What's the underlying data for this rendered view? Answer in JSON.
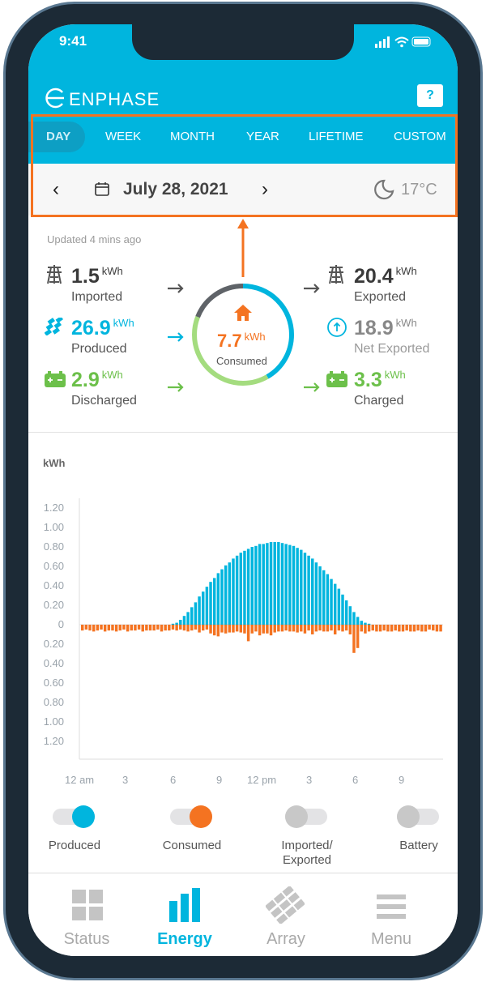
{
  "status_bar": {
    "time": "9:41"
  },
  "header": {
    "brand": "ENPHASE",
    "help_label": "?"
  },
  "tabs": [
    {
      "label": "DAY",
      "active": true
    },
    {
      "label": "WEEK"
    },
    {
      "label": "MONTH"
    },
    {
      "label": "YEAR"
    },
    {
      "label": "LIFETIME"
    },
    {
      "label": "CUSTOM"
    }
  ],
  "date_bar": {
    "date": "July 28, 2021",
    "weather_icon": "moon-icon",
    "temperature": "17°C"
  },
  "summary": {
    "updated": "Updated 4 mins ago",
    "imported": {
      "value": "1.5",
      "unit": "kWh",
      "label": "Imported"
    },
    "produced": {
      "value": "26.9",
      "unit": "kWh",
      "label": "Produced"
    },
    "discharged": {
      "value": "2.9",
      "unit": "kWh",
      "label": "Discharged"
    },
    "consumed": {
      "value": "7.7",
      "unit": "kWh",
      "label": "Consumed"
    },
    "exported": {
      "value": "20.4",
      "unit": "kWh",
      "label": "Exported"
    },
    "net_exported": {
      "value": "18.9",
      "unit": "kWh",
      "label": "Net Exported"
    },
    "charged": {
      "value": "3.3",
      "unit": "kWh",
      "label": "Charged"
    }
  },
  "colors": {
    "brand": "#00b5de",
    "produced": "#00b5de",
    "consumed": "#f47321",
    "battery": "#6cc04a",
    "grid": "#5f6368"
  },
  "chart_data": {
    "type": "bar",
    "ylabel": "kWh",
    "ylim": [
      -1.2,
      1.2
    ],
    "y_ticks": [
      "1.20",
      "1.00",
      "0.80",
      "0.60",
      "0.40",
      "0.20",
      "0",
      "0.20",
      "0.40",
      "0.60",
      "0.80",
      "1.00",
      "1.20"
    ],
    "x_ticks": [
      "12 am",
      "3",
      "6",
      "9",
      "12 pm",
      "3",
      "6",
      "9"
    ],
    "interval": "15 min",
    "series": [
      {
        "name": "Produced",
        "color": "#00b5de",
        "values": [
          0,
          0,
          0,
          0,
          0,
          0,
          0,
          0,
          0,
          0,
          0,
          0,
          0,
          0,
          0,
          0,
          0,
          0,
          0,
          0,
          0,
          0,
          0,
          0,
          0.01,
          0.02,
          0.05,
          0.09,
          0.13,
          0.18,
          0.23,
          0.29,
          0.34,
          0.39,
          0.44,
          0.48,
          0.53,
          0.57,
          0.61,
          0.64,
          0.68,
          0.71,
          0.74,
          0.76,
          0.78,
          0.8,
          0.81,
          0.83,
          0.83,
          0.84,
          0.85,
          0.85,
          0.85,
          0.84,
          0.83,
          0.82,
          0.81,
          0.79,
          0.77,
          0.74,
          0.71,
          0.68,
          0.64,
          0.6,
          0.56,
          0.52,
          0.47,
          0.42,
          0.37,
          0.31,
          0.25,
          0.19,
          0.13,
          0.08,
          0.04,
          0.02,
          0.01,
          0,
          0,
          0,
          0,
          0,
          0,
          0,
          0,
          0,
          0,
          0,
          0,
          0,
          0,
          0,
          0,
          0,
          0,
          0
        ]
      },
      {
        "name": "Consumed",
        "color": "#f47321",
        "values": [
          0.06,
          0.05,
          0.06,
          0.07,
          0.06,
          0.05,
          0.07,
          0.06,
          0.06,
          0.07,
          0.06,
          0.05,
          0.07,
          0.06,
          0.06,
          0.05,
          0.07,
          0.06,
          0.06,
          0.06,
          0.05,
          0.07,
          0.06,
          0.06,
          0.05,
          0.06,
          0.05,
          0.06,
          0.07,
          0.06,
          0.05,
          0.08,
          0.06,
          0.05,
          0.09,
          0.11,
          0.12,
          0.08,
          0.09,
          0.08,
          0.08,
          0.07,
          0.08,
          0.09,
          0.17,
          0.09,
          0.07,
          0.11,
          0.09,
          0.09,
          0.11,
          0.08,
          0.07,
          0.07,
          0.06,
          0.07,
          0.07,
          0.08,
          0.07,
          0.09,
          0.06,
          0.1,
          0.07,
          0.06,
          0.07,
          0.07,
          0.06,
          0.1,
          0.06,
          0.07,
          0.06,
          0.1,
          0.29,
          0.24,
          0.07,
          0.09,
          0.07,
          0.06,
          0.07,
          0.07,
          0.06,
          0.07,
          0.07,
          0.06,
          0.07,
          0.07,
          0.06,
          0.07,
          0.07,
          0.06,
          0.07,
          0.07,
          0.05,
          0.06,
          0.07,
          0.07
        ]
      }
    ]
  },
  "toggles": [
    {
      "label": "Produced",
      "on": true,
      "color": "#00b5de"
    },
    {
      "label": "Consumed",
      "on": true,
      "color": "#f47321"
    },
    {
      "label": "Imported/ Exported",
      "on": false
    },
    {
      "label": "Battery",
      "on": false
    }
  ],
  "nav": [
    {
      "label": "Status",
      "icon": "grid-icon"
    },
    {
      "label": "Energy",
      "icon": "bar-chart-icon",
      "active": true
    },
    {
      "label": "Array",
      "icon": "solar-array-icon"
    },
    {
      "label": "Menu",
      "icon": "hamburger-icon"
    }
  ]
}
